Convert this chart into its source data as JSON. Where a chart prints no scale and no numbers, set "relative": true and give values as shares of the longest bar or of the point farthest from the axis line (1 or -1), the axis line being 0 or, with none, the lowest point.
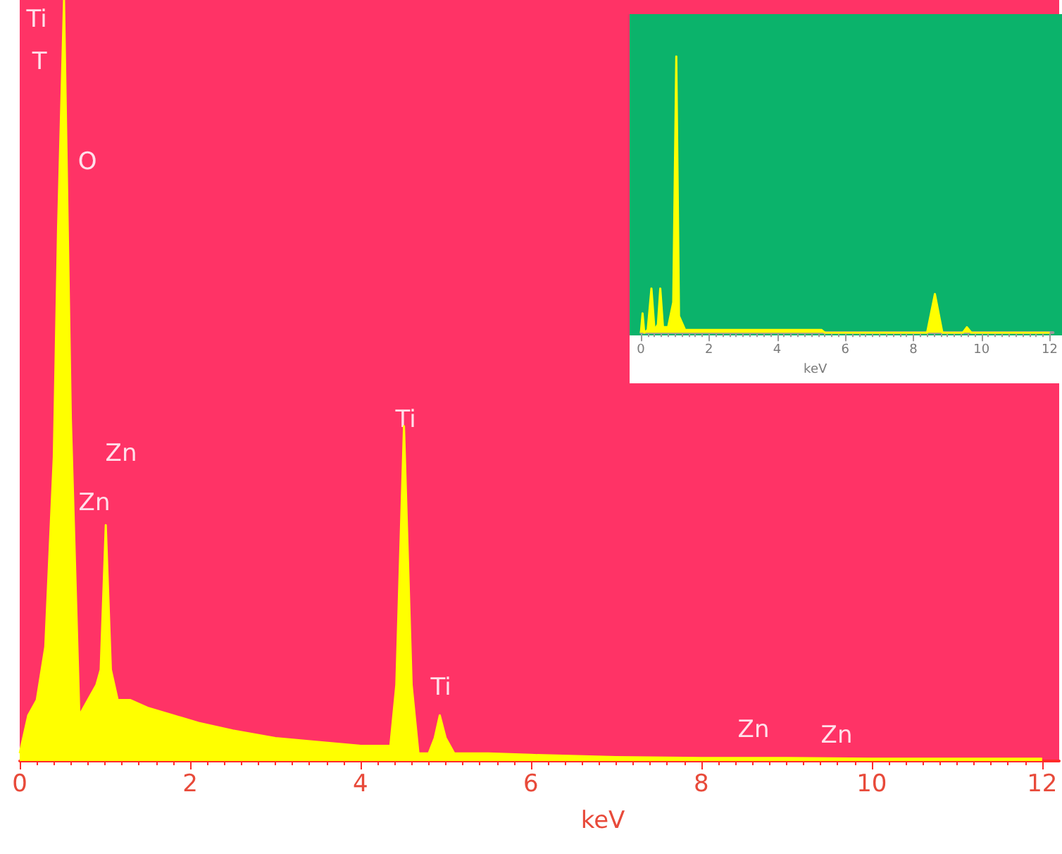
{
  "chart_data": [
    {
      "type": "area",
      "xlabel": "keV",
      "relative": true,
      "xlim": [
        0,
        12.2
      ],
      "xticks": [
        0,
        2,
        4,
        6,
        8,
        10,
        12
      ],
      "x": [
        0,
        0.1,
        0.2,
        0.3,
        0.4,
        0.45,
        0.52,
        0.6,
        0.7,
        0.8,
        0.9,
        0.95,
        1.01,
        1.07,
        1.15,
        1.3,
        1.5,
        1.8,
        2.1,
        2.5,
        3.0,
        3.5,
        4.0,
        4.35,
        4.42,
        4.51,
        4.6,
        4.68,
        4.8,
        4.87,
        4.93,
        5.0,
        5.1,
        5.5,
        6.0,
        7.0,
        8.0,
        9.0,
        10.0,
        11.0,
        12.0
      ],
      "series": [
        {
          "color": "#ffff00",
          "values": [
            0.01,
            0.06,
            0.08,
            0.15,
            0.4,
            0.7,
            1.0,
            0.45,
            0.06,
            0.08,
            0.1,
            0.12,
            0.31,
            0.12,
            0.08,
            0.08,
            0.07,
            0.06,
            0.05,
            0.04,
            0.03,
            0.025,
            0.02,
            0.02,
            0.1,
            0.44,
            0.1,
            0.01,
            0.01,
            0.03,
            0.06,
            0.03,
            0.01,
            0.01,
            0.008,
            0.005,
            0.004,
            0.004,
            0.003,
            0.003,
            0.003
          ]
        }
      ],
      "annotations": [
        "Ti",
        "T",
        "O",
        "Zn",
        "Zn",
        "Ti",
        "Ti",
        "Zn",
        "Zn"
      ]
    },
    {
      "type": "area",
      "xlabel": "keV",
      "relative": true,
      "xlim": [
        0,
        12.1
      ],
      "xticks": [
        0,
        2,
        4,
        6,
        8,
        10,
        12
      ],
      "x": [
        0,
        0.05,
        0.1,
        0.2,
        0.31,
        0.4,
        0.5,
        0.57,
        0.65,
        0.8,
        0.95,
        1.04,
        1.12,
        1.3,
        2,
        3,
        4,
        5.3,
        5.4,
        6,
        8,
        8.4,
        8.63,
        8.85,
        9.3,
        9.45,
        9.57,
        9.7,
        10,
        12
      ],
      "series": [
        {
          "color": "#ffff00",
          "values": [
            0,
            0.07,
            0,
            0.01,
            0.16,
            0.01,
            0.03,
            0.16,
            0.02,
            0.02,
            0.11,
            1,
            0.06,
            0.01,
            0.01,
            0.01,
            0.01,
            0.01,
            0,
            0,
            0,
            0,
            0.14,
            0,
            0,
            0,
            0.02,
            0,
            0,
            0
          ]
        }
      ]
    }
  ]
}
